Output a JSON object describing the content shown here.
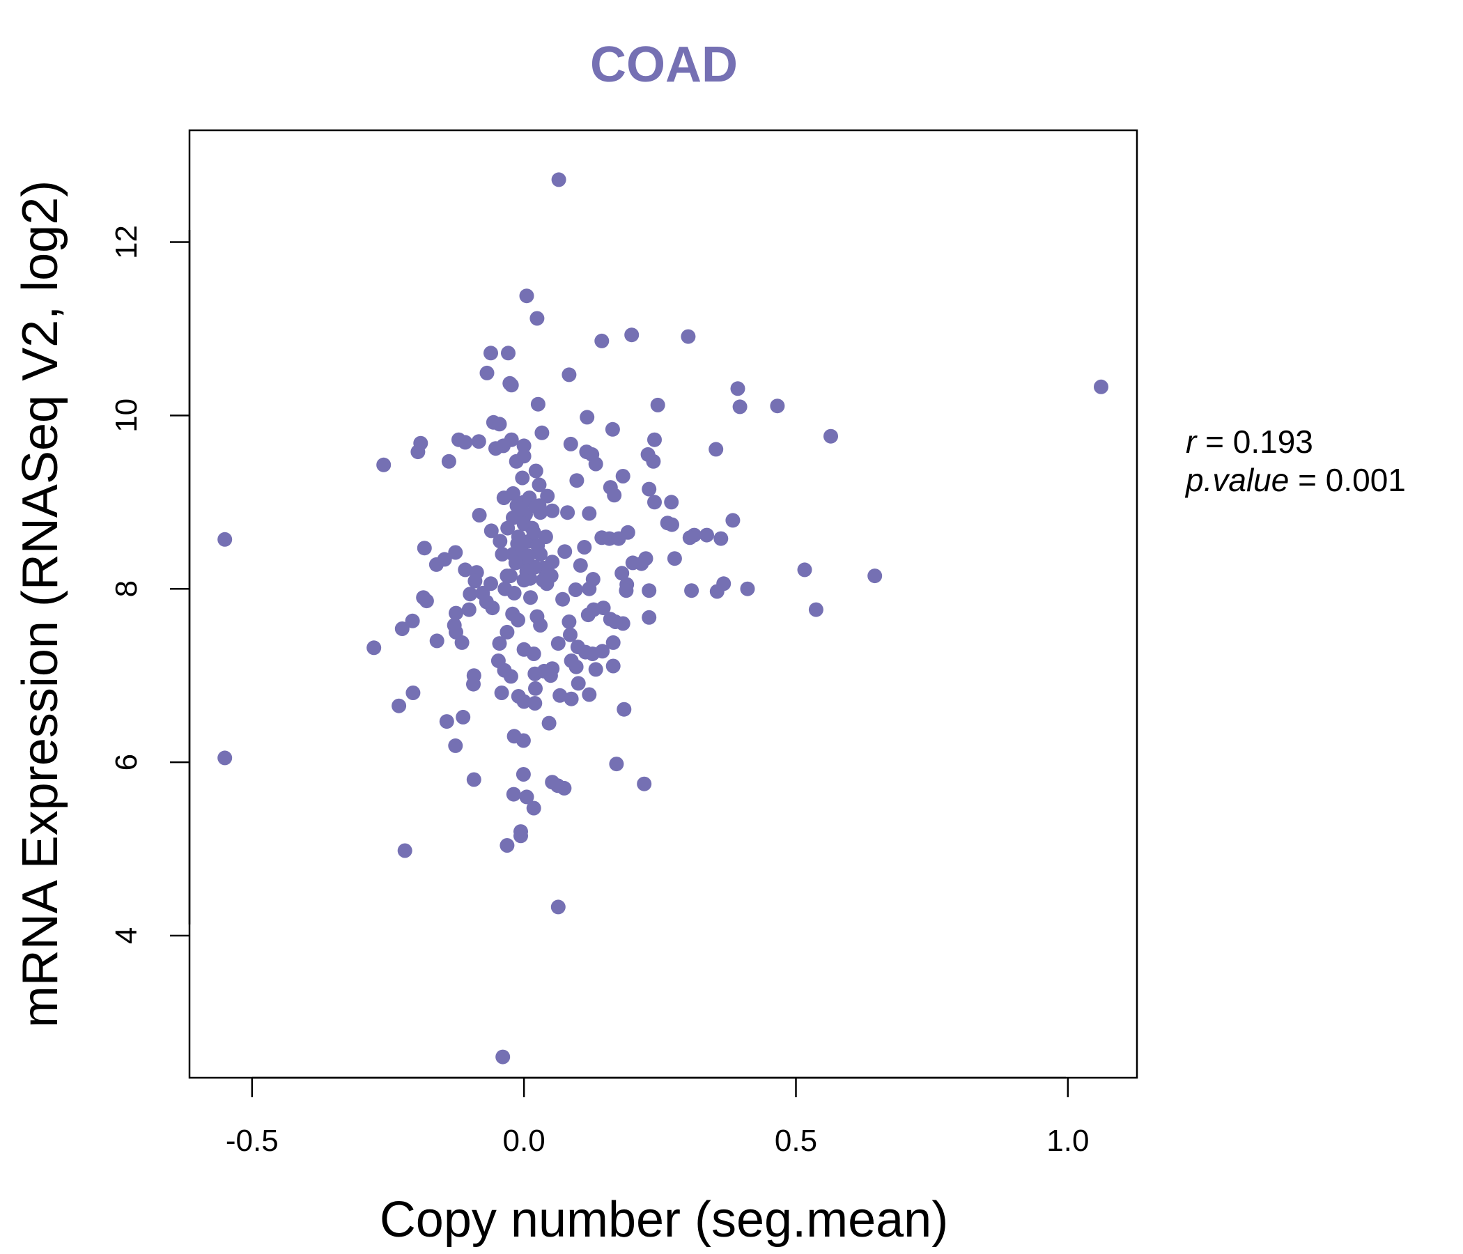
{
  "chart_data": {
    "type": "scatter",
    "title": "COAD",
    "xlabel": "Copy number (seg.mean)",
    "ylabel": "mRNA Expression (RNASeq V2, log2)",
    "xlim": [
      -0.615,
      1.127
    ],
    "ylim": [
      2.36,
      13.29
    ],
    "xticks": [
      -0.5,
      0.0,
      0.5,
      1.0
    ],
    "xtick_labels": [
      "-0.5",
      "0.0",
      "0.5",
      "1.0"
    ],
    "yticks": [
      4,
      6,
      8,
      10,
      12
    ],
    "ytick_labels": [
      "4",
      "6",
      "8",
      "10",
      "12"
    ],
    "point_color": "#7570B3",
    "title_color": "#7570B3",
    "grid": false,
    "legend": "none",
    "stats": {
      "r_label": "r",
      "r_value": "0.193",
      "p_label": "p.value",
      "p_value": "0.001"
    },
    "points": [
      [
        0.064,
        12.72
      ],
      [
        0.005,
        11.38
      ],
      [
        0.024,
        11.12
      ],
      [
        0.198,
        10.93
      ],
      [
        0.302,
        10.91
      ],
      [
        0.143,
        10.86
      ],
      [
        -0.061,
        10.72
      ],
      [
        -0.029,
        10.72
      ],
      [
        -0.068,
        10.49
      ],
      [
        0.083,
        10.47
      ],
      [
        -0.026,
        10.37
      ],
      [
        -0.023,
        10.35
      ],
      [
        1.061,
        10.33
      ],
      [
        0.393,
        10.31
      ],
      [
        0.026,
        10.13
      ],
      [
        0.246,
        10.12
      ],
      [
        0.397,
        10.1
      ],
      [
        0.466,
        10.11
      ],
      [
        0.116,
        9.98
      ],
      [
        -0.056,
        9.92
      ],
      [
        -0.045,
        9.9
      ],
      [
        0.163,
        9.84
      ],
      [
        0.033,
        9.8
      ],
      [
        0.564,
        9.76
      ],
      [
        0.24,
        9.72
      ],
      [
        -0.12,
        9.72
      ],
      [
        -0.19,
        9.68
      ],
      [
        -0.083,
        9.7
      ],
      [
        -0.023,
        9.72
      ],
      [
        0.0,
        9.65
      ],
      [
        -0.108,
        9.69
      ],
      [
        0.086,
        9.67
      ],
      [
        -0.038,
        9.65
      ],
      [
        -0.052,
        9.62
      ],
      [
        0.353,
        9.61
      ],
      [
        -0.195,
        9.58
      ],
      [
        0.115,
        9.58
      ],
      [
        0.125,
        9.55
      ],
      [
        0.228,
        9.55
      ],
      [
        0.0,
        9.53
      ],
      [
        0.238,
        9.47
      ],
      [
        -0.014,
        9.47
      ],
      [
        0.132,
        9.44
      ],
      [
        -0.258,
        9.43
      ],
      [
        -0.138,
        9.47
      ],
      [
        0.022,
        9.36
      ],
      [
        0.182,
        9.3
      ],
      [
        -0.003,
        9.28
      ],
      [
        0.097,
        9.25
      ],
      [
        0.028,
        9.2
      ],
      [
        0.159,
        9.17
      ],
      [
        0.23,
        9.15
      ],
      [
        -0.02,
        9.1
      ],
      [
        0.166,
        9.08
      ],
      [
        0.043,
        9.07
      ],
      [
        -0.037,
        9.05
      ],
      [
        0.271,
        9.0
      ],
      [
        0.24,
        9.0
      ],
      [
        -0.013,
        8.96
      ],
      [
        0.028,
        8.96
      ],
      [
        0.052,
        8.9
      ],
      [
        0.08,
        8.88
      ],
      [
        0.12,
        8.87
      ],
      [
        -0.082,
        8.85
      ],
      [
        0.003,
        8.86
      ],
      [
        0.384,
        8.79
      ],
      [
        0.264,
        8.76
      ],
      [
        0.272,
        8.74
      ],
      [
        0.336,
        8.62
      ],
      [
        0.313,
        8.62
      ],
      [
        0.305,
        8.59
      ],
      [
        -0.06,
        8.67
      ],
      [
        0.191,
        8.65
      ],
      [
        0.143,
        8.59
      ],
      [
        0.157,
        8.58
      ],
      [
        0.174,
        8.58
      ],
      [
        0.362,
        8.58
      ],
      [
        -0.044,
        8.55
      ],
      [
        -0.183,
        8.47
      ],
      [
        0.075,
        8.43
      ],
      [
        0.111,
        8.48
      ],
      [
        -0.126,
        8.42
      ],
      [
        -0.02,
        8.4
      ],
      [
        -0.146,
        8.34
      ],
      [
        0.224,
        8.35
      ],
      [
        0.277,
        8.35
      ],
      [
        0.2,
        8.3
      ],
      [
        -0.161,
        8.28
      ],
      [
        0.104,
        8.27
      ],
      [
        0.036,
        8.24
      ],
      [
        0.052,
        8.31
      ],
      [
        0.216,
        8.29
      ],
      [
        0.516,
        8.22
      ],
      [
        -0.108,
        8.22
      ],
      [
        -0.087,
        8.19
      ],
      [
        0.18,
        8.18
      ],
      [
        -0.031,
        8.15
      ],
      [
        0.645,
        8.15
      ],
      [
        0.011,
        8.12
      ],
      [
        0.127,
        8.11
      ],
      [
        0.042,
        8.06
      ],
      [
        -0.09,
        8.09
      ],
      [
        -0.061,
        8.06
      ],
      [
        0.189,
        8.05
      ],
      [
        0.367,
        8.06
      ],
      [
        -0.035,
        8.0
      ],
      [
        0.095,
        7.99
      ],
      [
        0.308,
        7.98
      ],
      [
        0.411,
        8.0
      ],
      [
        0.23,
        7.98
      ],
      [
        0.12,
        8.0
      ],
      [
        0.355,
        7.97
      ],
      [
        0.188,
        7.98
      ],
      [
        -0.099,
        7.94
      ],
      [
        -0.076,
        7.95
      ],
      [
        0.071,
        7.88
      ],
      [
        -0.185,
        7.9
      ],
      [
        -0.179,
        7.86
      ],
      [
        -0.069,
        7.85
      ],
      [
        0.537,
        7.76
      ],
      [
        0.146,
        7.78
      ],
      [
        0.128,
        7.76
      ],
      [
        -0.101,
        7.76
      ],
      [
        -0.058,
        7.78
      ],
      [
        -0.125,
        7.72
      ],
      [
        -0.021,
        7.71
      ],
      [
        0.118,
        7.7
      ],
      [
        0.024,
        7.68
      ],
      [
        0.159,
        7.65
      ],
      [
        0.23,
        7.67
      ],
      [
        -0.205,
        7.63
      ],
      [
        -0.011,
        7.64
      ],
      [
        0.083,
        7.62
      ],
      [
        0.182,
        7.6
      ],
      [
        0.03,
        7.58
      ],
      [
        0.168,
        7.62
      ],
      [
        -0.224,
        7.54
      ],
      [
        -0.128,
        7.58
      ],
      [
        -0.125,
        7.5
      ],
      [
        -0.031,
        7.5
      ],
      [
        0.085,
        7.47
      ],
      [
        -0.16,
        7.4
      ],
      [
        -0.114,
        7.38
      ],
      [
        -0.045,
        7.37
      ],
      [
        0.063,
        7.37
      ],
      [
        0.164,
        7.38
      ],
      [
        -0.276,
        7.32
      ],
      [
        0.099,
        7.33
      ],
      [
        0.144,
        7.28
      ],
      [
        0.0,
        7.3
      ],
      [
        0.113,
        7.27
      ],
      [
        0.126,
        7.25
      ],
      [
        0.018,
        7.25
      ],
      [
        -0.047,
        7.17
      ],
      [
        0.087,
        7.17
      ],
      [
        0.096,
        7.1
      ],
      [
        0.164,
        7.11
      ],
      [
        0.052,
        7.08
      ],
      [
        0.132,
        7.07
      ],
      [
        0.037,
        7.05
      ],
      [
        -0.036,
        7.06
      ],
      [
        0.02,
        7.02
      ],
      [
        0.049,
        7.0
      ],
      [
        -0.092,
        7.0
      ],
      [
        -0.024,
        6.99
      ],
      [
        -0.093,
        6.9
      ],
      [
        0.1,
        6.91
      ],
      [
        0.021,
        6.85
      ],
      [
        0.12,
        6.78
      ],
      [
        -0.204,
        6.8
      ],
      [
        -0.041,
        6.8
      ],
      [
        0.066,
        6.77
      ],
      [
        -0.01,
        6.76
      ],
      [
        0.087,
        6.73
      ],
      [
        0.0,
        6.7
      ],
      [
        0.02,
        6.68
      ],
      [
        -0.23,
        6.65
      ],
      [
        0.184,
        6.61
      ],
      [
        -0.112,
        6.52
      ],
      [
        -0.142,
        6.47
      ],
      [
        0.046,
        6.45
      ],
      [
        -0.018,
        6.3
      ],
      [
        -0.001,
        6.25
      ],
      [
        -0.126,
        6.19
      ],
      [
        -0.55,
        8.57
      ],
      [
        -0.55,
        6.05
      ],
      [
        0.17,
        5.98
      ],
      [
        -0.001,
        5.86
      ],
      [
        -0.092,
        5.8
      ],
      [
        0.052,
        5.77
      ],
      [
        0.062,
        5.73
      ],
      [
        0.074,
        5.7
      ],
      [
        0.221,
        5.75
      ],
      [
        -0.019,
        5.63
      ],
      [
        0.005,
        5.6
      ],
      [
        0.018,
        5.47
      ],
      [
        -0.006,
        5.15
      ],
      [
        -0.006,
        5.2
      ],
      [
        -0.031,
        5.04
      ],
      [
        -0.219,
        4.98
      ],
      [
        0.063,
        4.33
      ],
      [
        -0.039,
        2.6
      ],
      [
        -0.02,
        8.82
      ],
      [
        0.0,
        8.75
      ],
      [
        0.015,
        8.7
      ],
      [
        -0.01,
        8.6
      ],
      [
        0.01,
        8.55
      ],
      [
        0.025,
        8.5
      ],
      [
        -0.005,
        8.45
      ],
      [
        0.03,
        8.4
      ],
      [
        0.0,
        8.35
      ],
      [
        -0.015,
        8.3
      ],
      [
        0.02,
        8.25
      ],
      [
        0.005,
        8.2
      ],
      [
        -0.025,
        8.15
      ],
      [
        0.035,
        8.1
      ],
      [
        0.0,
        9.0
      ],
      [
        0.01,
        9.05
      ],
      [
        -0.008,
        8.92
      ],
      [
        0.018,
        8.65
      ],
      [
        0.03,
        8.88
      ],
      [
        -0.012,
        8.52
      ],
      [
        0.008,
        8.38
      ],
      [
        0.04,
        8.6
      ],
      [
        -0.03,
        8.7
      ],
      [
        0.022,
        8.95
      ],
      [
        0.0,
        8.1
      ],
      [
        -0.018,
        7.95
      ],
      [
        0.012,
        7.9
      ],
      [
        0.05,
        8.15
      ],
      [
        -0.04,
        8.4
      ]
    ]
  }
}
